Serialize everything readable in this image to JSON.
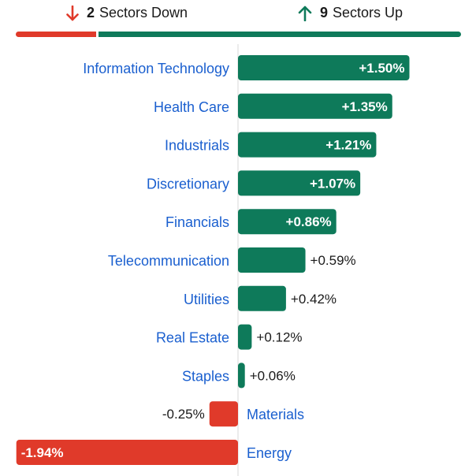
{
  "header": {
    "down_count": "2",
    "down_label": "Sectors Down",
    "up_count": "9",
    "up_label": "Sectors Up"
  },
  "colors": {
    "up": "#0e7a5a",
    "down": "#e03a2a",
    "label": "#1a5fcf",
    "value_text": "#1a1a1a",
    "axis": "#d8d8d8"
  },
  "icons": {
    "down": "arrow-down-icon",
    "up": "arrow-up-icon"
  },
  "chart_data": {
    "type": "bar",
    "orientation": "horizontal",
    "title": "",
    "xlabel": "",
    "ylabel": "",
    "xlim": [
      -1.94,
      1.6
    ],
    "grid": false,
    "categories": [
      "Information Technology",
      "Health Care",
      "Industrials",
      "Discretionary",
      "Financials",
      "Telecommunication",
      "Utilities",
      "Real Estate",
      "Staples",
      "Materials",
      "Energy"
    ],
    "values": [
      1.5,
      1.35,
      1.21,
      1.07,
      0.86,
      0.59,
      0.42,
      0.12,
      0.06,
      -0.25,
      -1.94
    ],
    "value_labels": [
      "+1.50%",
      "+1.35%",
      "+1.21%",
      "+1.07%",
      "+0.86%",
      "+0.59%",
      "+0.42%",
      "+0.12%",
      "+0.06%",
      "-0.25%",
      "-1.94%"
    ]
  }
}
